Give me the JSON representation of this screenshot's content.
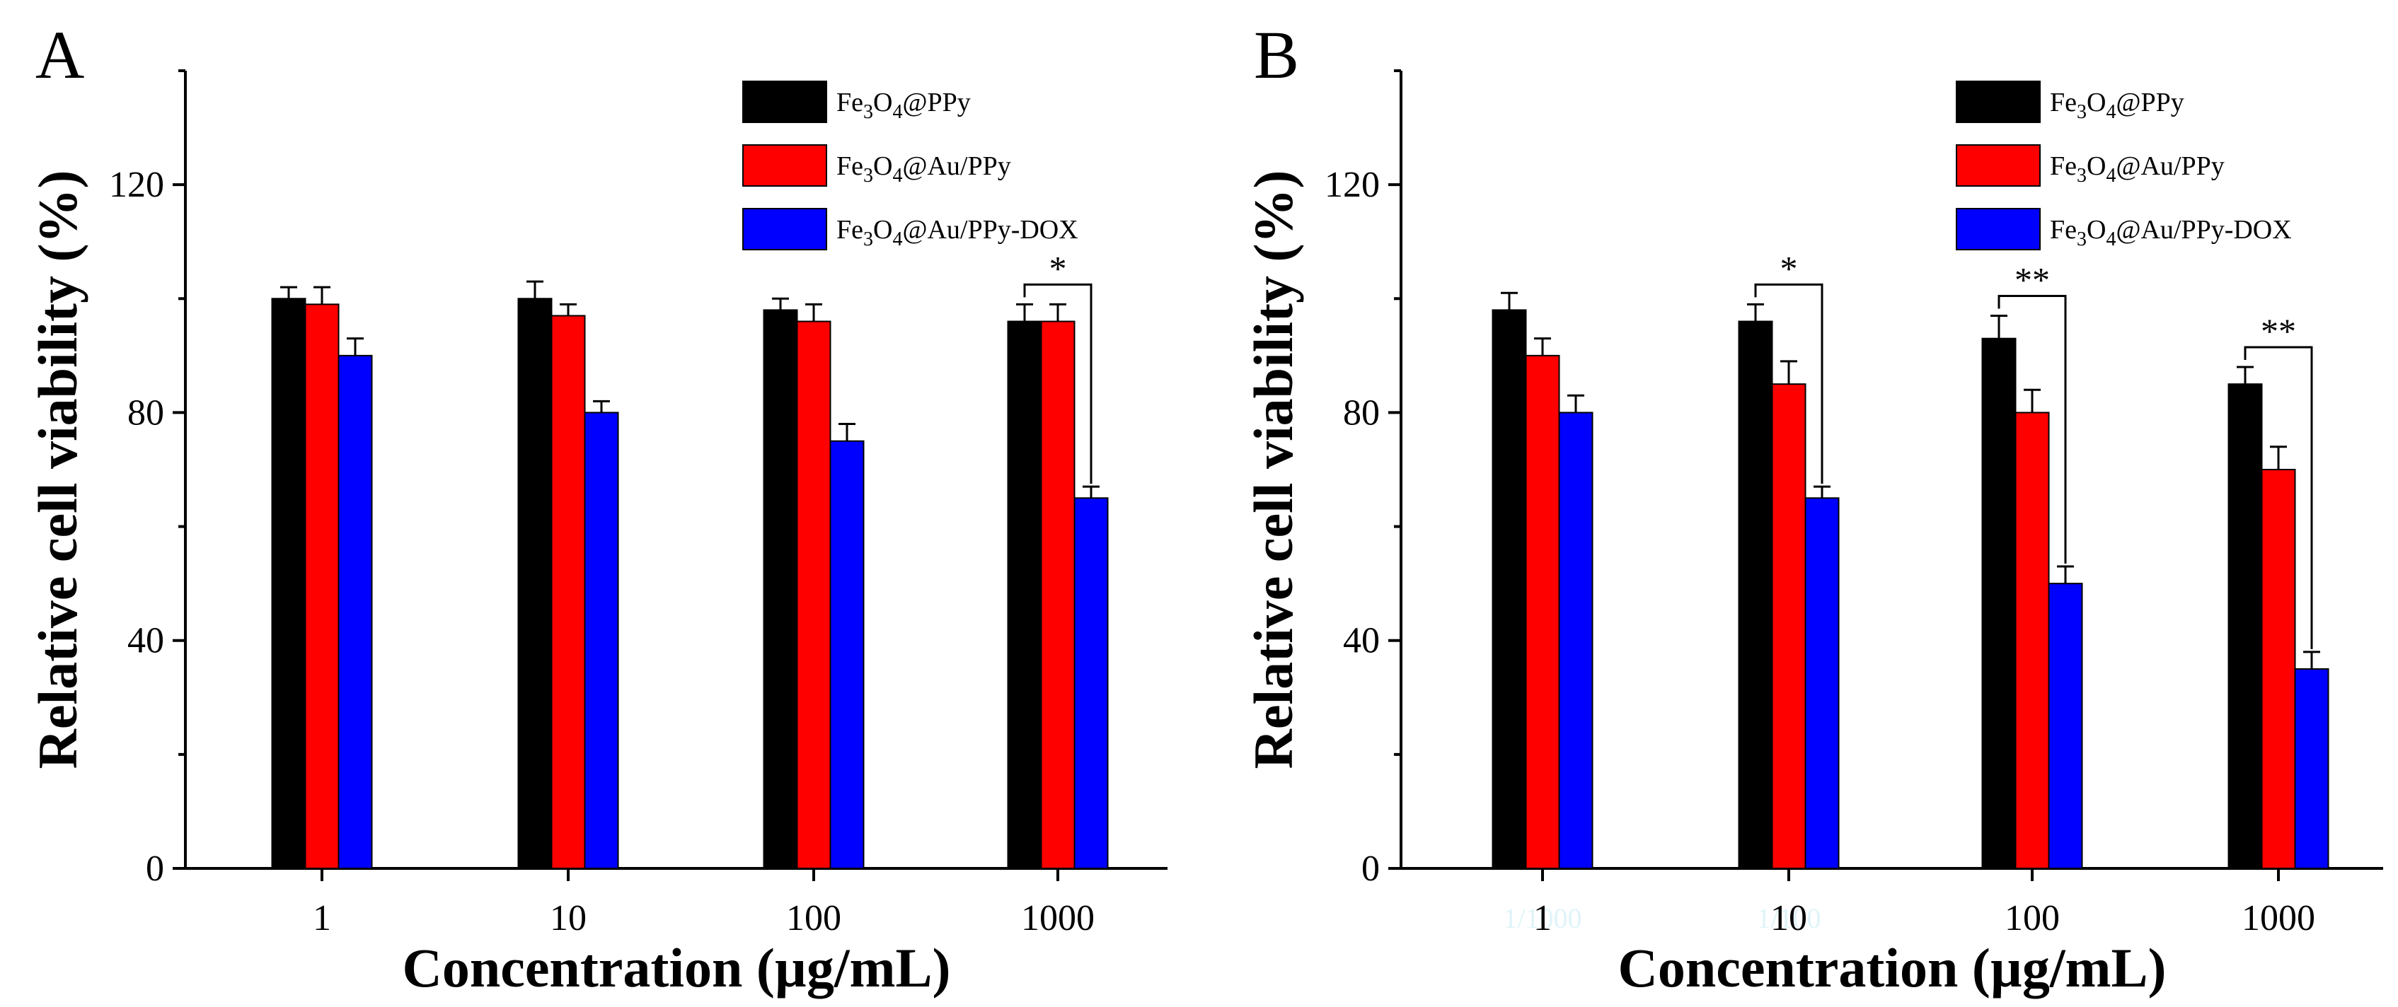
{
  "chart_data": [
    {
      "panel": "A",
      "type": "bar",
      "categories": [
        "1",
        "10",
        "100",
        "1000"
      ],
      "xlabel": "Concentration (µg/mL)",
      "ylabel": "Relative cell viability (%)",
      "ylim": [
        0,
        140
      ],
      "yticks": [
        "0",
        "40",
        "80",
        "120"
      ],
      "legend_position": "top-right",
      "series": [
        {
          "name": "Fe3O4@PPy",
          "color": "#000000",
          "values": [
            100,
            100,
            98,
            96
          ],
          "errors": [
            2,
            3,
            2,
            3
          ]
        },
        {
          "name": "Fe3O4@Au/PPy",
          "color": "#ff0000",
          "values": [
            99,
            97,
            96,
            96
          ],
          "errors": [
            3,
            2,
            3,
            3
          ]
        },
        {
          "name": "Fe3O4@Au/PPy-DOX",
          "color": "#0000ff",
          "values": [
            90,
            80,
            75,
            65
          ],
          "errors": [
            3,
            2,
            3,
            2
          ]
        }
      ],
      "significance": [
        {
          "category": "1000",
          "from_series": 0,
          "to_series": 2,
          "label": "*"
        }
      ]
    },
    {
      "panel": "B",
      "type": "bar",
      "categories": [
        "1",
        "10",
        "100",
        "1000"
      ],
      "faint_labels": [
        "1/1000",
        "1/100"
      ],
      "xlabel": "Concentration (µg/mL)",
      "ylabel": "Relative cell viability (%)",
      "ylim": [
        0,
        140
      ],
      "yticks": [
        "0",
        "40",
        "80",
        "120"
      ],
      "legend_position": "top-right",
      "series": [
        {
          "name": "Fe3O4@PPy",
          "color": "#000000",
          "values": [
            98,
            96,
            93,
            85
          ],
          "errors": [
            3,
            3,
            4,
            3
          ]
        },
        {
          "name": "Fe3O4@Au/PPy",
          "color": "#ff0000",
          "values": [
            90,
            85,
            80,
            70
          ],
          "errors": [
            3,
            4,
            4,
            4
          ]
        },
        {
          "name": "Fe3O4@Au/PPy-DOX",
          "color": "#0000ff",
          "values": [
            80,
            65,
            50,
            35
          ],
          "errors": [
            3,
            2,
            3,
            3
          ]
        }
      ],
      "significance": [
        {
          "category": "10",
          "from_series": 0,
          "to_series": 2,
          "label": "*"
        },
        {
          "category": "100",
          "from_series": 0,
          "to_series": 2,
          "label": "**"
        },
        {
          "category": "1000",
          "from_series": 0,
          "to_series": 2,
          "label": "**"
        }
      ]
    }
  ]
}
